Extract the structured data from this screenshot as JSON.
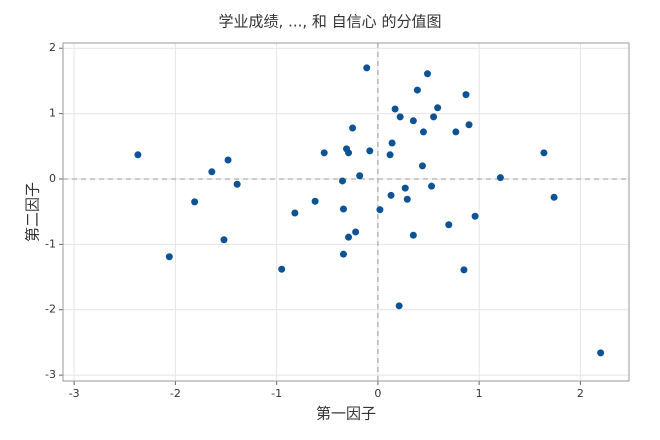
{
  "chart_data": {
    "type": "scatter",
    "title": "学业成绩, ..., 和 自信心 的分值图",
    "xlabel": "第一因子",
    "ylabel": "第二因子",
    "x": [
      -2.37,
      -2.06,
      -1.81,
      -1.64,
      -1.52,
      -1.48,
      -1.39,
      -0.95,
      -0.82,
      -0.62,
      -0.53,
      -0.35,
      -0.34,
      -0.34,
      -0.31,
      -0.29,
      -0.29,
      -0.25,
      -0.22,
      -0.18,
      -0.11,
      -0.08,
      0.02,
      0.12,
      0.13,
      0.14,
      0.17,
      0.21,
      0.22,
      0.27,
      0.29,
      0.35,
      0.35,
      0.39,
      0.44,
      0.45,
      0.49,
      0.53,
      0.55,
      0.59,
      0.7,
      0.77,
      0.85,
      0.87,
      0.9,
      0.96,
      1.21,
      1.64,
      1.74,
      2.2
    ],
    "values": [
      0.37,
      -1.19,
      -0.35,
      0.11,
      -0.93,
      0.29,
      -0.08,
      -1.38,
      -0.52,
      -0.34,
      0.4,
      -0.03,
      -0.46,
      -1.15,
      0.46,
      -0.89,
      0.4,
      0.78,
      -0.81,
      0.05,
      1.7,
      0.43,
      -0.47,
      0.37,
      -0.25,
      0.55,
      1.07,
      -1.94,
      0.95,
      -0.14,
      -0.31,
      0.89,
      -0.86,
      1.36,
      0.2,
      0.72,
      1.61,
      -0.11,
      0.95,
      1.09,
      -0.7,
      0.72,
      -1.39,
      1.29,
      0.83,
      -0.57,
      0.02,
      0.4,
      -0.28,
      -2.66
    ],
    "color": "#0b5394",
    "xlim": [
      -3.11,
      2.48
    ],
    "ylim": [
      -3.09,
      2.08
    ],
    "xticks": [
      -3,
      -2,
      -1,
      0,
      1,
      2
    ],
    "yticks": [
      -3,
      -2,
      -1,
      0,
      1,
      2
    ],
    "grid": true,
    "reference_lines": {
      "x": 0,
      "y": 0
    }
  }
}
